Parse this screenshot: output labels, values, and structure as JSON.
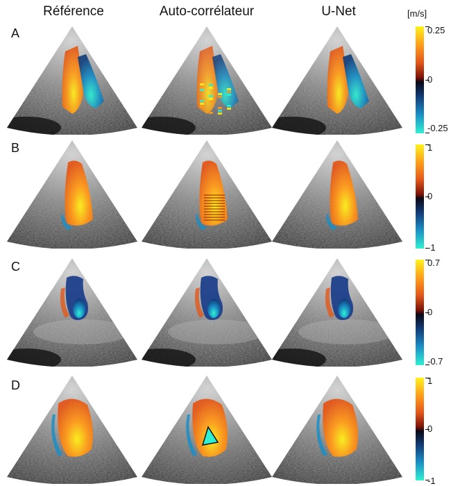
{
  "columns": [
    "Référence",
    "Auto-corrélateur",
    "U-Net"
  ],
  "unit": "[m/s]",
  "rows": [
    {
      "label": "A",
      "max": "0.25",
      "mid": "0",
      "min": "-0.25"
    },
    {
      "label": "B",
      "max": "1",
      "mid": "0",
      "min": "-1"
    },
    {
      "label": "C",
      "max": "0.7",
      "mid": "0",
      "min": "-0.7"
    },
    {
      "label": "D",
      "max": "1",
      "mid": "0",
      "min": "-1"
    }
  ],
  "colormap": {
    "positive_peak": "#fff21a",
    "positive": "#e2571a",
    "zero": "#0a0a16",
    "negative": "#1a8ec4",
    "negative_peak": "#2ff0d2"
  },
  "icons": {
    "ultrasound": "ultrasound-sector-image",
    "doppler": "color-doppler-overlay"
  }
}
